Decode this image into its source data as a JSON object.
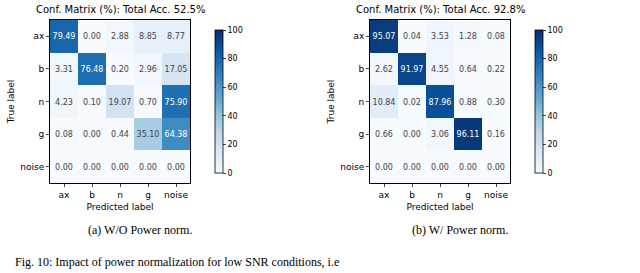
{
  "chart_data": [
    {
      "type": "heatmap",
      "title": "Conf. Matrix (%): Total Acc. 52.5%",
      "x_label": "Predicted label",
      "y_label": "True label",
      "subcaption": "(a) W/O Power norm.",
      "x_categories": [
        "ax",
        "b",
        "n",
        "g",
        "noise"
      ],
      "y_categories": [
        "ax",
        "b",
        "n",
        "g",
        "noise"
      ],
      "cells": [
        [
          79.49,
          0.0,
          2.88,
          8.85,
          8.77
        ],
        [
          3.31,
          76.48,
          0.2,
          2.96,
          17.05
        ],
        [
          4.23,
          0.1,
          19.07,
          0.7,
          75.9
        ],
        [
          0.08,
          0.0,
          0.44,
          35.1,
          64.38
        ],
        [
          0.0,
          0.0,
          0.0,
          0.0,
          0.0
        ]
      ],
      "value_labels": [
        [
          "79.49",
          "0.00",
          "2.88",
          "8.85",
          "8.77"
        ],
        [
          "3.31",
          "76.48",
          "0.20",
          "2.96",
          "17.05"
        ],
        [
          "4.23",
          "0.10",
          "19.07",
          "0.70",
          "75.90"
        ],
        [
          "0.08",
          "0.00",
          "0.44",
          "35.10",
          "64.38"
        ],
        [
          "0.00",
          "0.00",
          "0.00",
          "0.00",
          "0.00"
        ]
      ],
      "data_labels": true,
      "color": "Blues",
      "colorbar_range": [
        0,
        100
      ],
      "colorbar_ticks": [
        0,
        20,
        40,
        60,
        80,
        100
      ]
    },
    {
      "type": "heatmap",
      "title": "Conf. Matrix (%): Total Acc. 92.8%",
      "x_label": "Predicted label",
      "y_label": "True label",
      "subcaption": "(b) W/ Power norm.",
      "x_categories": [
        "ax",
        "b",
        "n",
        "g",
        "noise"
      ],
      "y_categories": [
        "ax",
        "b",
        "n",
        "g",
        "noise"
      ],
      "cells": [
        [
          95.07,
          0.04,
          3.53,
          1.28,
          0.08
        ],
        [
          2.62,
          91.97,
          4.55,
          0.64,
          0.22
        ],
        [
          10.84,
          0.02,
          87.96,
          0.88,
          0.3
        ],
        [
          0.66,
          0.0,
          3.06,
          96.11,
          0.16
        ],
        [
          0.0,
          0.0,
          0.0,
          0.0,
          0.0
        ]
      ],
      "value_labels": [
        [
          "95.07",
          "0.04",
          "3.53",
          "1.28",
          "0.08"
        ],
        [
          "2.62",
          "91.97",
          "4.55",
          "0.64",
          "0.22"
        ],
        [
          "10.84",
          "0.02",
          "87.96",
          "0.88",
          "0.30"
        ],
        [
          "0.66",
          "0.00",
          "3.06",
          "96.11",
          "0.16"
        ],
        [
          "0.00",
          "0.00",
          "0.00",
          "0.00",
          "0.00"
        ]
      ],
      "data_labels": true,
      "color": "Blues",
      "colorbar_range": [
        0,
        100
      ],
      "colorbar_ticks": [
        0,
        20,
        40,
        60,
        80,
        100
      ]
    }
  ],
  "caption": "Fig. 10: Impact of power normalization for low SNR conditions, i.e"
}
